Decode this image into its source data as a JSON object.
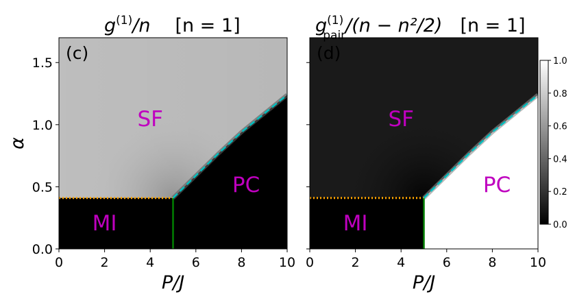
{
  "chart_data": {
    "type": "heatmap",
    "colormap": "gray",
    "x_range": [
      0,
      10
    ],
    "y_range": [
      0,
      1.7
    ],
    "x_ticks": [
      "0",
      "2",
      "4",
      "6",
      "8",
      "10"
    ],
    "y_ticks": [
      "0.0",
      "0.5",
      "1.0",
      "1.5"
    ],
    "xlabel": "P/J",
    "ylabel": "α",
    "mi_boundary_alpha": 0.41,
    "mi_boundary_colors": {
      "dotted": "#ffa500",
      "vertical": "#008000"
    },
    "critical_P": 5.0,
    "pc_boundary": {
      "color": "#00bfbf",
      "points": [
        [
          5.0,
          0.41
        ],
        [
          6.0,
          0.59
        ],
        [
          7.0,
          0.77
        ],
        [
          8.0,
          0.94
        ],
        [
          9.0,
          1.09
        ],
        [
          10.0,
          1.24
        ]
      ]
    },
    "panels": [
      {
        "label": "(c)",
        "title_main": "g",
        "title_sup": "(1)",
        "title_rest": "/n",
        "title_cond": "[n = 1]",
        "sf_value": 0.72,
        "pc_value": 0.0,
        "mi_value": 0.0,
        "regions": [
          {
            "text": "SF",
            "x": 4.0,
            "y": 1.05
          },
          {
            "text": "PC",
            "x": 8.2,
            "y": 0.52
          },
          {
            "text": "MI",
            "x": 2.0,
            "y": 0.21
          }
        ]
      },
      {
        "label": "(d)",
        "title_main": "g",
        "title_sup": "(1)",
        "title_sub": "pair",
        "title_rest": "/(n − n²/2)",
        "title_cond": "[n = 1]",
        "sf_value": 0.1,
        "pc_value": 1.0,
        "mi_value": 0.0,
        "regions": [
          {
            "text": "SF",
            "x": 4.0,
            "y": 1.05
          },
          {
            "text": "PC",
            "x": 8.2,
            "y": 0.52
          },
          {
            "text": "MI",
            "x": 2.0,
            "y": 0.21
          }
        ]
      }
    ],
    "colorbar": {
      "range": [
        0,
        1
      ],
      "ticks": [
        "0.0",
        "0.2",
        "0.4",
        "0.6",
        "0.8",
        "1.0"
      ]
    }
  }
}
